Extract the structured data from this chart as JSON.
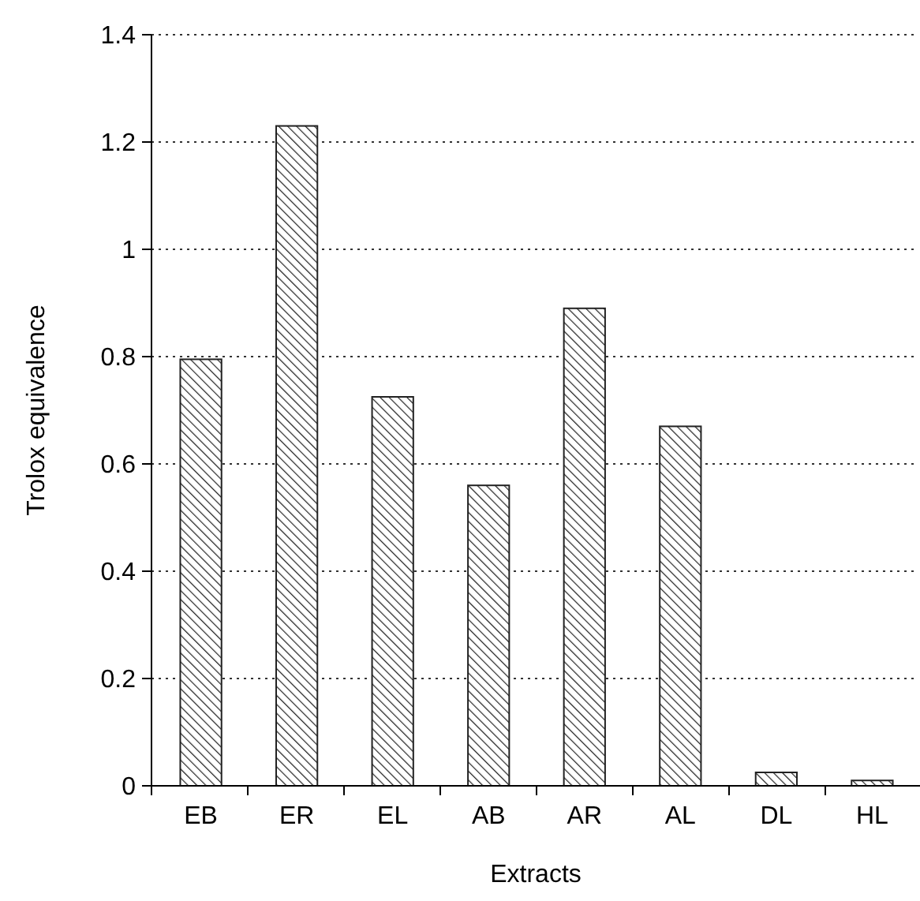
{
  "chart_data": {
    "type": "bar",
    "xlabel": "Extracts",
    "ylabel": "Trolox equivalence",
    "categories": [
      "EB",
      "ER",
      "EL",
      "AB",
      "AR",
      "AL",
      "DL",
      "HL"
    ],
    "values": [
      0.795,
      1.23,
      0.725,
      0.56,
      0.89,
      0.67,
      0.025,
      0.01
    ],
    "color": "#222222",
    "ylim": [
      0,
      1.4
    ],
    "yticks": [
      0,
      0.2,
      0.4,
      0.6,
      0.8,
      1,
      1.2,
      1.4
    ],
    "grid": "y"
  }
}
